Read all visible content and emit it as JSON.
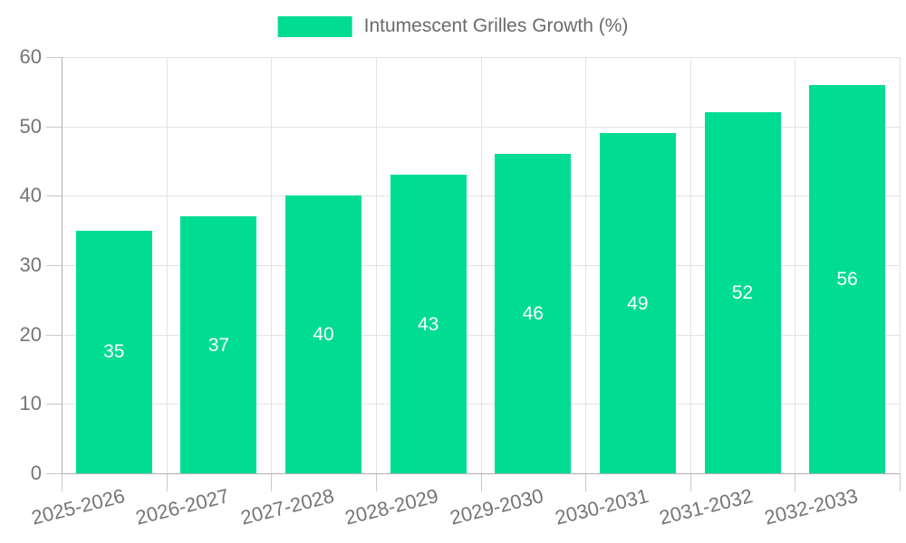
{
  "chart_data": {
    "type": "bar",
    "title": "",
    "categories": [
      "2025-2026",
      "2026-2027",
      "2027-2028",
      "2028-2029",
      "2029-2030",
      "2030-2031",
      "2031-2032",
      "2032-2033"
    ],
    "series": [
      {
        "name": "Intumescent Grilles Growth (%)",
        "values": [
          35,
          37,
          40,
          43,
          46,
          49,
          52,
          56
        ]
      }
    ],
    "xlabel": "",
    "ylabel": "",
    "ylim": [
      0,
      60
    ],
    "yticks": [
      0,
      10,
      20,
      30,
      40,
      50,
      60
    ],
    "grid": true,
    "legend_position": "top",
    "colors": {
      "bar": "#00DC92",
      "bar_label": "#FFFFFF",
      "axis_text": "#757575",
      "legend_text": "#6B6B6B",
      "axis_line": "#B0B0B0",
      "grid_line": "#E3E3E3",
      "tick_line": "#C9C9C9",
      "background": "#FFFFFF"
    }
  }
}
